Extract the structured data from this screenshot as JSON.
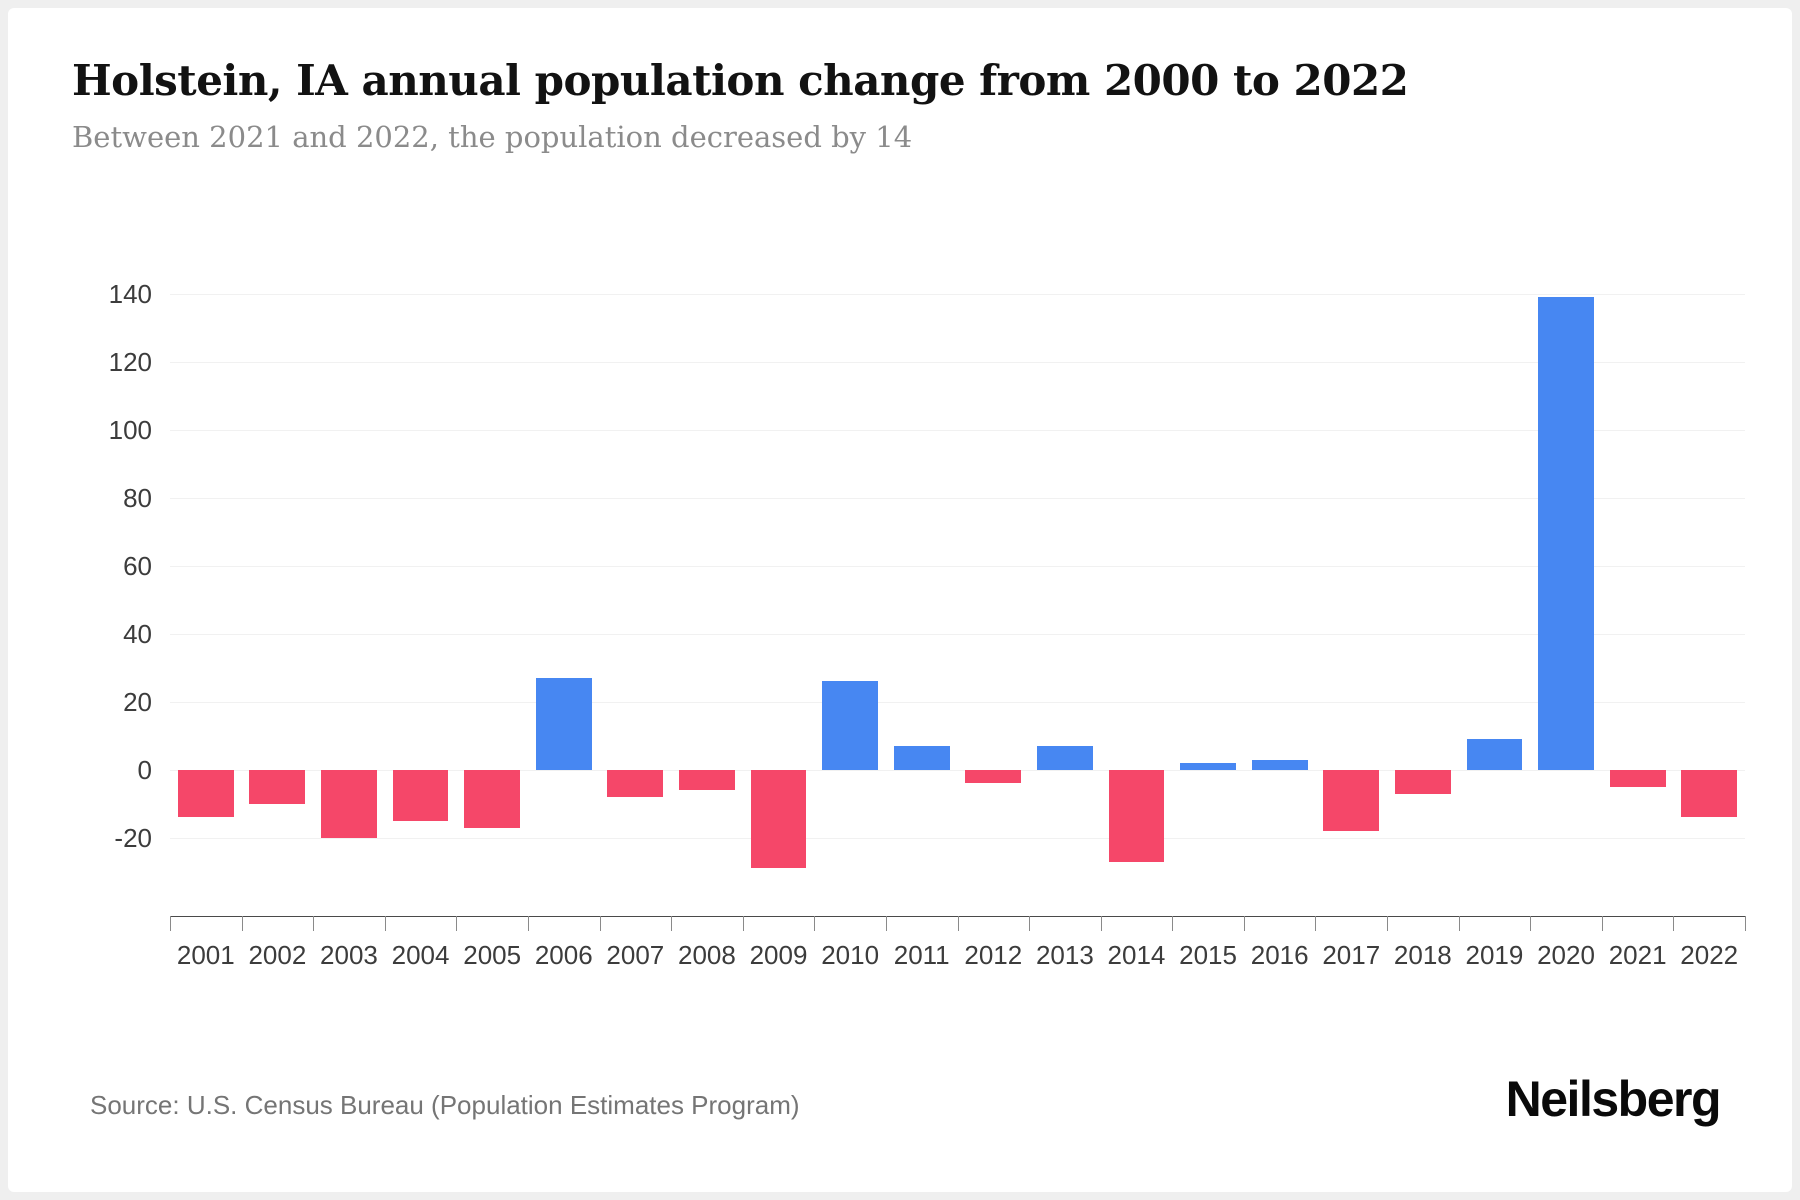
{
  "page": {
    "title": "Holstein, IA annual population change from 2000 to 2022",
    "subtitle": "Between 2021 and 2022, the population decreased by 14",
    "source": "Source: U.S. Census Bureau (Population Estimates Program)",
    "brand": "Neilsberg"
  },
  "chart_data": {
    "type": "bar",
    "title": "Holstein, IA annual population change from 2000 to 2022",
    "subtitle": "Between 2021 and 2022, the population decreased by 14",
    "categories": [
      "2001",
      "2002",
      "2003",
      "2004",
      "2005",
      "2006",
      "2007",
      "2008",
      "2009",
      "2010",
      "2011",
      "2012",
      "2013",
      "2014",
      "2015",
      "2016",
      "2017",
      "2018",
      "2019",
      "2020",
      "2021",
      "2022"
    ],
    "values": [
      -14,
      -10,
      -20,
      -15,
      -17,
      27,
      -8,
      -6,
      -29,
      26,
      7,
      -4,
      7,
      -27,
      2,
      3,
      -18,
      -7,
      9,
      139,
      -5,
      -14
    ],
    "xlabel": "",
    "ylabel": "",
    "y_ticks": [
      -20,
      0,
      20,
      40,
      60,
      80,
      100,
      120,
      140
    ],
    "ylim": [
      -43,
      150
    ],
    "grid": true,
    "legend": false,
    "colors": {
      "positive": "#4787f2",
      "negative": "#f54769"
    },
    "source": "Source: U.S. Census Bureau (Population Estimates Program)",
    "brand": "Neilsberg"
  }
}
